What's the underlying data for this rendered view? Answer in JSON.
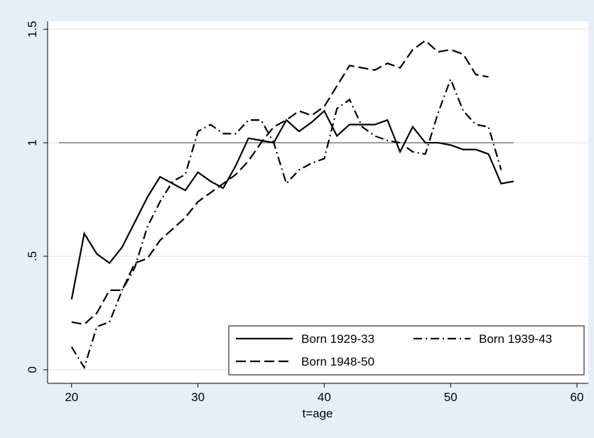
{
  "chart_data": {
    "type": "line",
    "xlabel": "t=age",
    "xlim": [
      18.1,
      60.9
    ],
    "xticks": [
      20,
      30,
      40,
      50,
      60
    ],
    "ylim": [
      -0.06,
      1.535
    ],
    "yticks": [
      0,
      {
        "value": 0.5,
        "label": ".5"
      },
      1,
      1.5
    ],
    "grid": true,
    "reference_line": {
      "y": 1,
      "x": [
        19,
        55
      ],
      "color": "#555555"
    },
    "legend": "bottom-right",
    "series": [
      {
        "name": "Born 1929-33",
        "color": "#000000",
        "dash": "solid",
        "x": [
          20,
          21,
          22,
          23,
          24,
          25,
          26,
          27,
          28,
          29,
          30,
          31,
          32,
          33,
          34,
          35,
          36,
          37,
          38,
          39,
          40,
          41,
          42,
          43,
          44,
          45,
          46,
          47,
          48,
          49,
          50,
          51,
          52,
          53,
          54,
          55
        ],
        "values": [
          0.31,
          0.6,
          0.51,
          0.47,
          0.54,
          0.65,
          0.76,
          0.85,
          0.82,
          0.79,
          0.87,
          0.83,
          0.8,
          0.9,
          1.02,
          1.01,
          1.0,
          1.1,
          1.05,
          1.09,
          1.14,
          1.03,
          1.08,
          1.08,
          1.08,
          1.1,
          0.96,
          1.07,
          1.0,
          1.0,
          0.99,
          0.97,
          0.97,
          0.95,
          0.82,
          0.83
        ]
      },
      {
        "name": "Born 1939-43",
        "color": "#000000",
        "dash": "dashdot",
        "x": [
          20,
          21,
          22,
          23,
          24,
          25,
          26,
          27,
          28,
          29,
          30,
          31,
          32,
          33,
          34,
          35,
          36,
          37,
          38,
          39,
          40,
          41,
          42,
          43,
          44,
          45,
          46,
          47,
          48,
          49,
          50,
          51,
          52,
          53,
          54
        ],
        "values": [
          0.1,
          0.01,
          0.19,
          0.21,
          0.35,
          0.45,
          0.63,
          0.74,
          0.83,
          0.86,
          1.05,
          1.08,
          1.04,
          1.04,
          1.1,
          1.1,
          1.0,
          0.82,
          0.88,
          0.91,
          0.93,
          1.15,
          1.19,
          1.07,
          1.03,
          1.01,
          1.0,
          0.96,
          0.95,
          1.13,
          1.28,
          1.14,
          1.08,
          1.07,
          0.88
        ]
      },
      {
        "name": "Born 1948-50",
        "color": "#000000",
        "dash": "dashed",
        "x": [
          20,
          21,
          22,
          23,
          24,
          25,
          26,
          27,
          28,
          29,
          30,
          31,
          32,
          33,
          34,
          35,
          36,
          37,
          38,
          39,
          40,
          41,
          42,
          43,
          44,
          45,
          46,
          47,
          48,
          49,
          50,
          51,
          52,
          53
        ],
        "values": [
          0.21,
          0.2,
          0.25,
          0.35,
          0.35,
          0.47,
          0.49,
          0.57,
          0.62,
          0.67,
          0.74,
          0.78,
          0.82,
          0.86,
          0.92,
          1.0,
          1.07,
          1.1,
          1.14,
          1.12,
          1.16,
          1.25,
          1.34,
          1.33,
          1.32,
          1.35,
          1.33,
          1.41,
          1.45,
          1.4,
          1.41,
          1.39,
          1.3,
          1.29
        ]
      }
    ]
  }
}
